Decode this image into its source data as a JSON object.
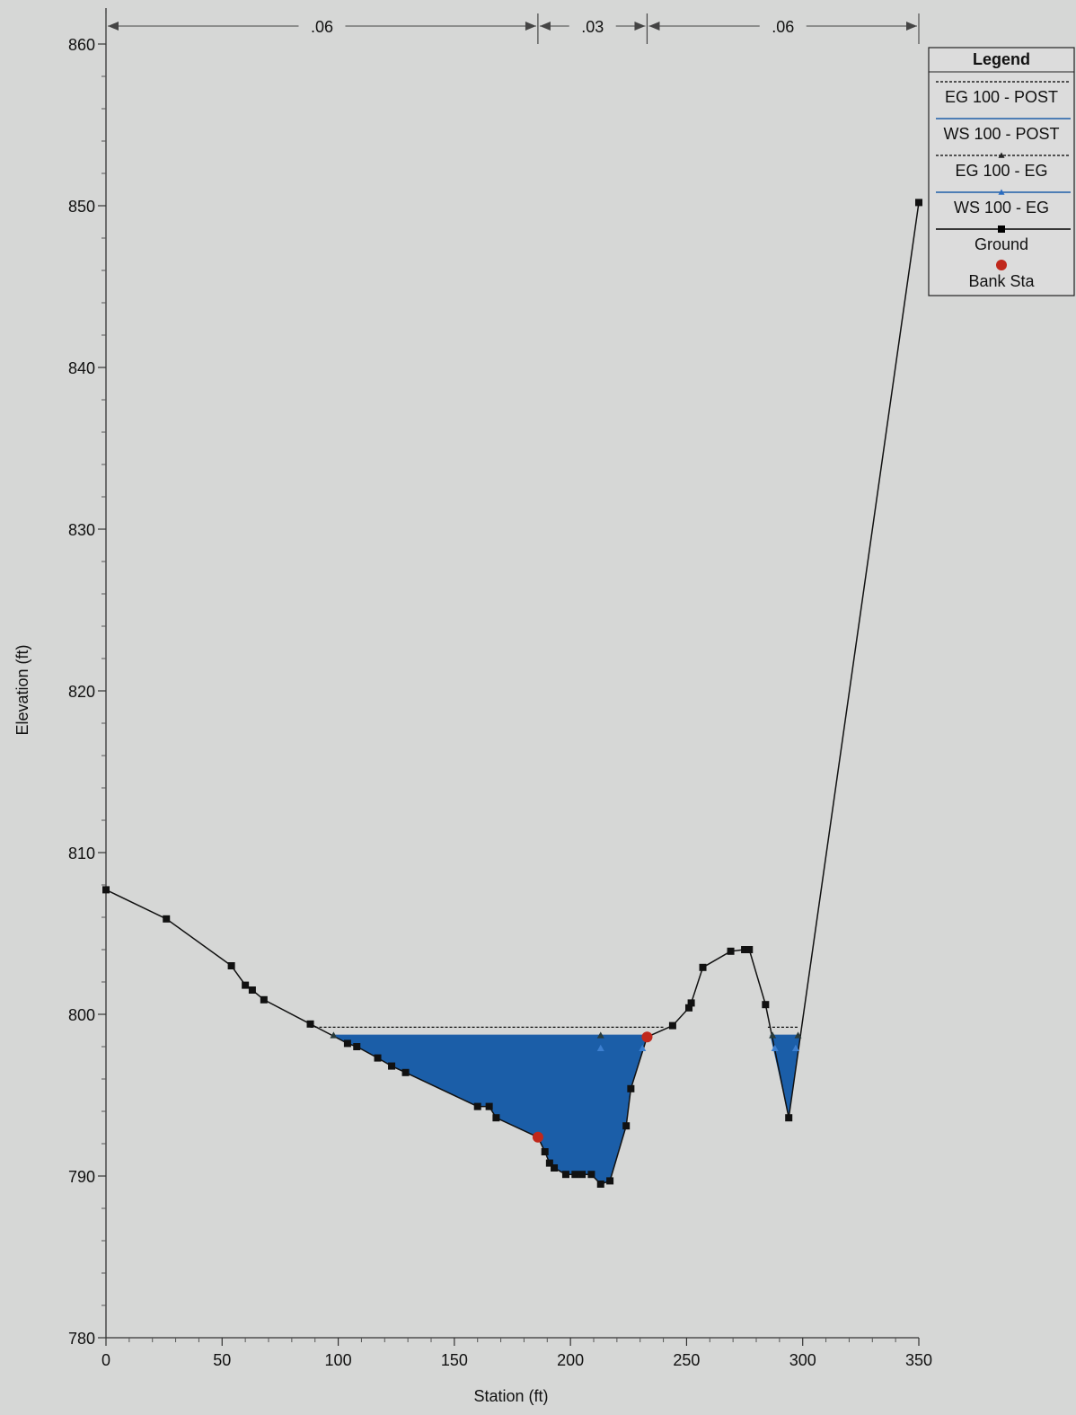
{
  "chart_data": {
    "type": "line",
    "xlabel": "Station (ft)",
    "ylabel": "Elevation (ft)",
    "xlim": [
      0,
      350
    ],
    "ylim": [
      780,
      860
    ],
    "x_ticks": [
      0,
      50,
      100,
      150,
      200,
      250,
      300,
      350
    ],
    "y_ticks": [
      780,
      790,
      800,
      810,
      820,
      830,
      840,
      850,
      860
    ],
    "grid": false,
    "legend": {
      "title": "Legend",
      "placement": "top-right",
      "entries": [
        {
          "label": "EG 100 - POST",
          "style": "dotted",
          "color": "#000000",
          "marker": "none"
        },
        {
          "label": "WS 100 - POST",
          "style": "solid",
          "color": "#1f5fa8",
          "marker": "none"
        },
        {
          "label": "EG 100 - EG",
          "style": "dotted",
          "color": "#000000",
          "marker": "triangle",
          "marker_color": "#222222"
        },
        {
          "label": "WS 100 - EG",
          "style": "solid",
          "color": "#1f5fa8",
          "marker": "triangle",
          "marker_color": "#2a6cc0"
        },
        {
          "label": "Ground",
          "style": "solid",
          "color": "#000000",
          "marker": "square",
          "marker_color": "#000000"
        },
        {
          "label": "Bank Sta",
          "style": "none",
          "color": "#c0281c",
          "marker": "circle",
          "marker_color": "#c0281c"
        }
      ]
    },
    "manning_n": [
      {
        "label": ".06",
        "from": 0,
        "to": 186
      },
      {
        "label": ".03",
        "from": 186,
        "to": 233
      },
      {
        "label": ".06",
        "from": 233,
        "to": 350
      }
    ],
    "series": [
      {
        "name": "Ground",
        "x": [
          0,
          26,
          54,
          60,
          63,
          68,
          88,
          104,
          108,
          117,
          123,
          129,
          160,
          165,
          168,
          186,
          189,
          191,
          193,
          198,
          202,
          205,
          209,
          213,
          217,
          224,
          226,
          233,
          244,
          251,
          252,
          257,
          269,
          275,
          277,
          284,
          294,
          350
        ],
        "y": [
          807.7,
          805.9,
          803.0,
          801.8,
          801.5,
          800.9,
          799.4,
          798.2,
          798.0,
          797.3,
          796.8,
          796.4,
          794.3,
          794.3,
          793.6,
          792.4,
          791.5,
          790.8,
          790.5,
          790.1,
          790.1,
          790.1,
          790.1,
          789.5,
          789.7,
          793.1,
          795.4,
          798.6,
          799.3,
          800.4,
          800.7,
          802.9,
          803.9,
          804.0,
          804.0,
          800.6,
          793.6,
          850.2
        ]
      },
      {
        "name": "EG 100 - POST",
        "segments": [
          {
            "x": [
              88,
              240
            ],
            "y": [
              799.2,
              799.2
            ]
          },
          {
            "x": [
              285,
              298
            ],
            "y": [
              799.2,
              799.2
            ]
          }
        ]
      },
      {
        "name": "WS 100 - POST",
        "segments": [
          {
            "x": [
              98,
              233
            ],
            "y": [
              798.7,
              798.7
            ]
          },
          {
            "x": [
              286,
              299
            ],
            "y": [
              798.7,
              798.7
            ]
          }
        ]
      },
      {
        "name": "EG 100 - EG",
        "points": [
          {
            "x": 98,
            "y": 798.7
          },
          {
            "x": 213,
            "y": 798.7
          },
          {
            "x": 287,
            "y": 798.7
          },
          {
            "x": 298,
            "y": 798.7
          }
        ]
      },
      {
        "name": "WS 100 - EG",
        "points": [
          {
            "x": 213,
            "y": 797.9
          },
          {
            "x": 231,
            "y": 797.9
          },
          {
            "x": 288,
            "y": 797.9
          },
          {
            "x": 297,
            "y": 797.9
          }
        ]
      },
      {
        "name": "Bank Sta",
        "points": [
          {
            "x": 186,
            "y": 792.4
          },
          {
            "x": 233,
            "y": 798.6
          }
        ]
      }
    ],
    "water_fill": {
      "elevation": 798.7,
      "color": "#1b5ea8",
      "regions": [
        [
          98,
          233
        ],
        [
          286,
          299
        ]
      ]
    }
  }
}
